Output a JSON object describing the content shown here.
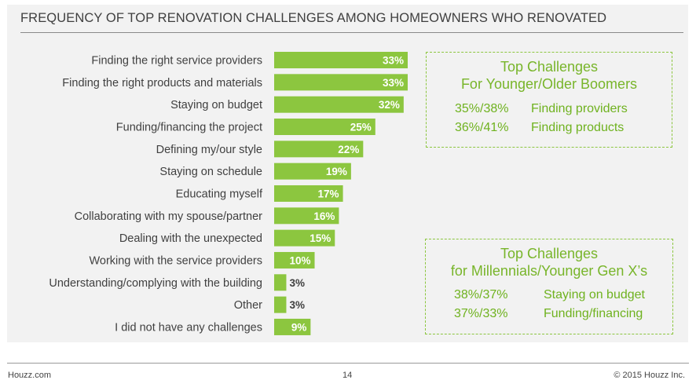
{
  "page": {
    "title": "FREQUENCY OF TOP RENOVATION CHALLENGES AMONG HOMEOWNERS WHO RENOVATED",
    "footer_left": "Houzz.com",
    "footer_center": "14",
    "footer_right": "© 2015 Houzz Inc."
  },
  "colors": {
    "bar": "#8cc63f",
    "value_inside": "#ffffff",
    "value_outside": "#404040",
    "accent_text": "#78b52a"
  },
  "chart_data": {
    "type": "bar",
    "orientation": "horizontal",
    "title": "FREQUENCY OF TOP RENOVATION CHALLENGES AMONG HOMEOWNERS WHO RENOVATED",
    "categories": [
      "Finding the right service providers",
      "Finding the right products and materials",
      "Staying on budget",
      "Funding/financing the project",
      "Defining my/our style",
      "Staying on schedule",
      "Educating myself",
      "Collaborating with my spouse/partner",
      "Dealing with the unexpected",
      "Working with the service providers",
      "Understanding/complying with the building",
      "Other",
      "I did not have any challenges"
    ],
    "values": [
      33,
      33,
      32,
      25,
      22,
      19,
      17,
      16,
      15,
      10,
      3,
      3,
      9
    ],
    "value_labels": [
      "33%",
      "33%",
      "32%",
      "25%",
      "22%",
      "19%",
      "17%",
      "16%",
      "15%",
      "10%",
      "3%",
      "3%",
      "9%"
    ],
    "unit": "%",
    "xlim": [
      0,
      33
    ],
    "grid": false,
    "legend": "none"
  },
  "callouts": [
    {
      "title_line1": "Top Challenges",
      "title_line2": "For Younger/Older Boomers",
      "rows": [
        {
          "value": "35%/38%",
          "label": "Finding providers"
        },
        {
          "value": "36%/41%",
          "label": "Finding products"
        }
      ]
    },
    {
      "title_line1": "Top Challenges",
      "title_line2": "for Millennials/Younger Gen X’s",
      "rows": [
        {
          "value": "38%/37%",
          "label": "Staying on budget"
        },
        {
          "value": "37%/33%",
          "label": "Funding/financing"
        }
      ]
    }
  ]
}
